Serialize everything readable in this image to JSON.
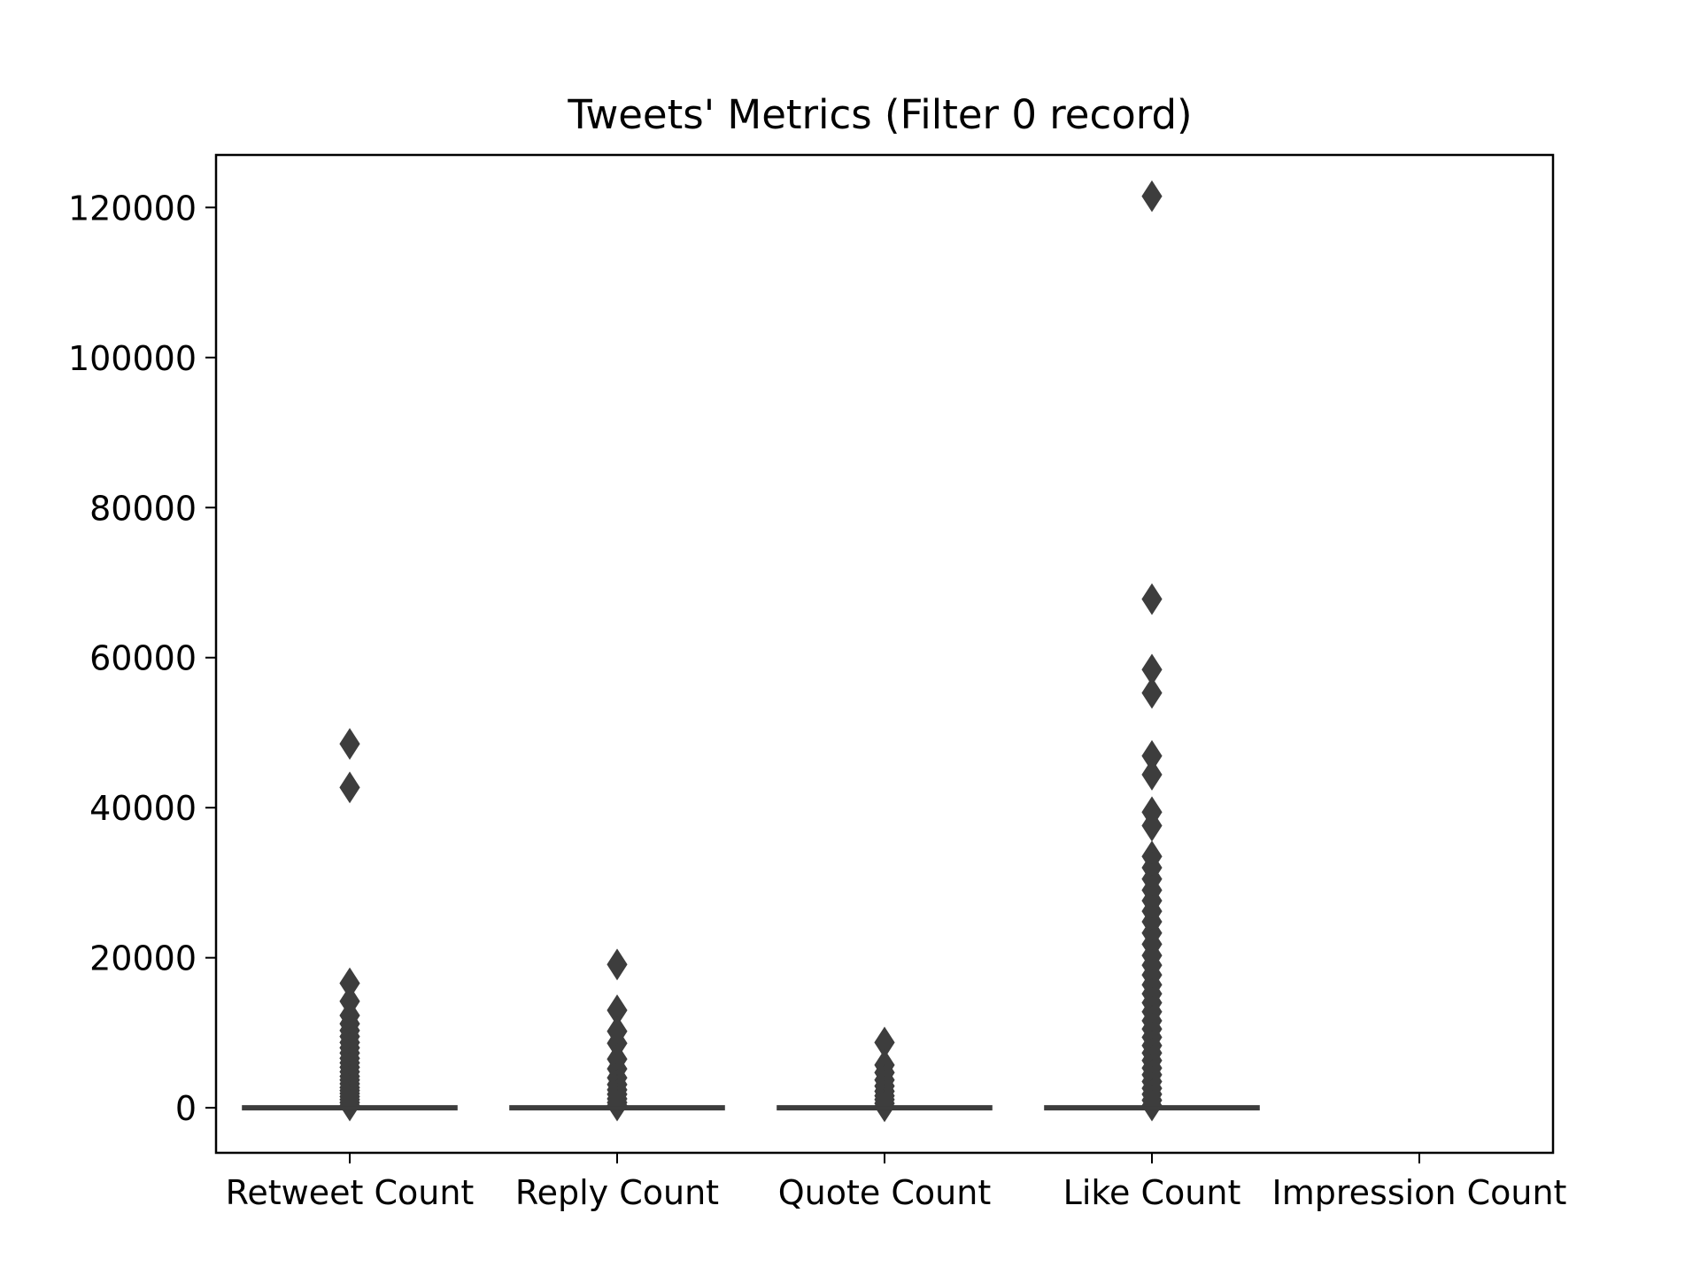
{
  "chart_data": {
    "type": "box",
    "title": "Tweets' Metrics (Filter 0 record)",
    "xlabel": "",
    "ylabel": "",
    "ylim": [
      -6000,
      127000
    ],
    "yticks": [
      0,
      20000,
      40000,
      60000,
      80000,
      100000,
      120000
    ],
    "ytick_labels": [
      "0",
      "20000",
      "40000",
      "60000",
      "80000",
      "100000",
      "120000"
    ],
    "categories": [
      "Retweet Count",
      "Reply Count",
      "Quote Count",
      "Like Count",
      "Impression Count"
    ],
    "grid": false,
    "legend": "none",
    "colors": {
      "box": "#3d3d3d",
      "axis": "#000000",
      "background": "#ffffff"
    },
    "boxes": [
      {
        "name": "Retweet Count",
        "median": 0,
        "q1": 0,
        "q3": 0,
        "whisker_low": 0,
        "whisker_high": 0,
        "outliers": [
          48500,
          42700,
          16600,
          14200,
          12300,
          11200,
          10300,
          9500,
          8700,
          8000,
          7300,
          6600,
          6000,
          5400,
          4800,
          4200,
          3700,
          3200,
          2700,
          2300,
          1900,
          1500,
          1100,
          700,
          300
        ]
      },
      {
        "name": "Reply Count",
        "median": 0,
        "q1": 0,
        "q3": 0,
        "whisker_low": 0,
        "whisker_high": 0,
        "outliers": [
          19100,
          13000,
          10200,
          8600,
          6500,
          5200,
          4000,
          3100,
          2400,
          1800,
          1200,
          700,
          300
        ]
      },
      {
        "name": "Quote Count",
        "median": 0,
        "q1": 0,
        "q3": 0,
        "whisker_low": 0,
        "whisker_high": 0,
        "outliers": [
          8700,
          5700,
          4700,
          3700,
          2900,
          2200,
          1600,
          1100,
          600,
          200
        ]
      },
      {
        "name": "Like Count",
        "median": 0,
        "q1": 0,
        "q3": 0,
        "whisker_low": 0,
        "whisker_high": 0,
        "outliers": [
          121500,
          67800,
          58400,
          55300,
          46900,
          44400,
          39400,
          37600,
          33500,
          32000,
          30500,
          29000,
          27600,
          26200,
          24800,
          23300,
          21800,
          20300,
          19000,
          17700,
          16400,
          15200,
          14000,
          12800,
          11600,
          10500,
          9400,
          8300,
          7300,
          6300,
          5300,
          4400,
          3500,
          2600,
          1800,
          1000,
          300
        ]
      },
      {
        "name": "Impression Count",
        "median": null,
        "q1": null,
        "q3": null,
        "whisker_low": null,
        "whisker_high": null,
        "outliers": []
      }
    ]
  }
}
